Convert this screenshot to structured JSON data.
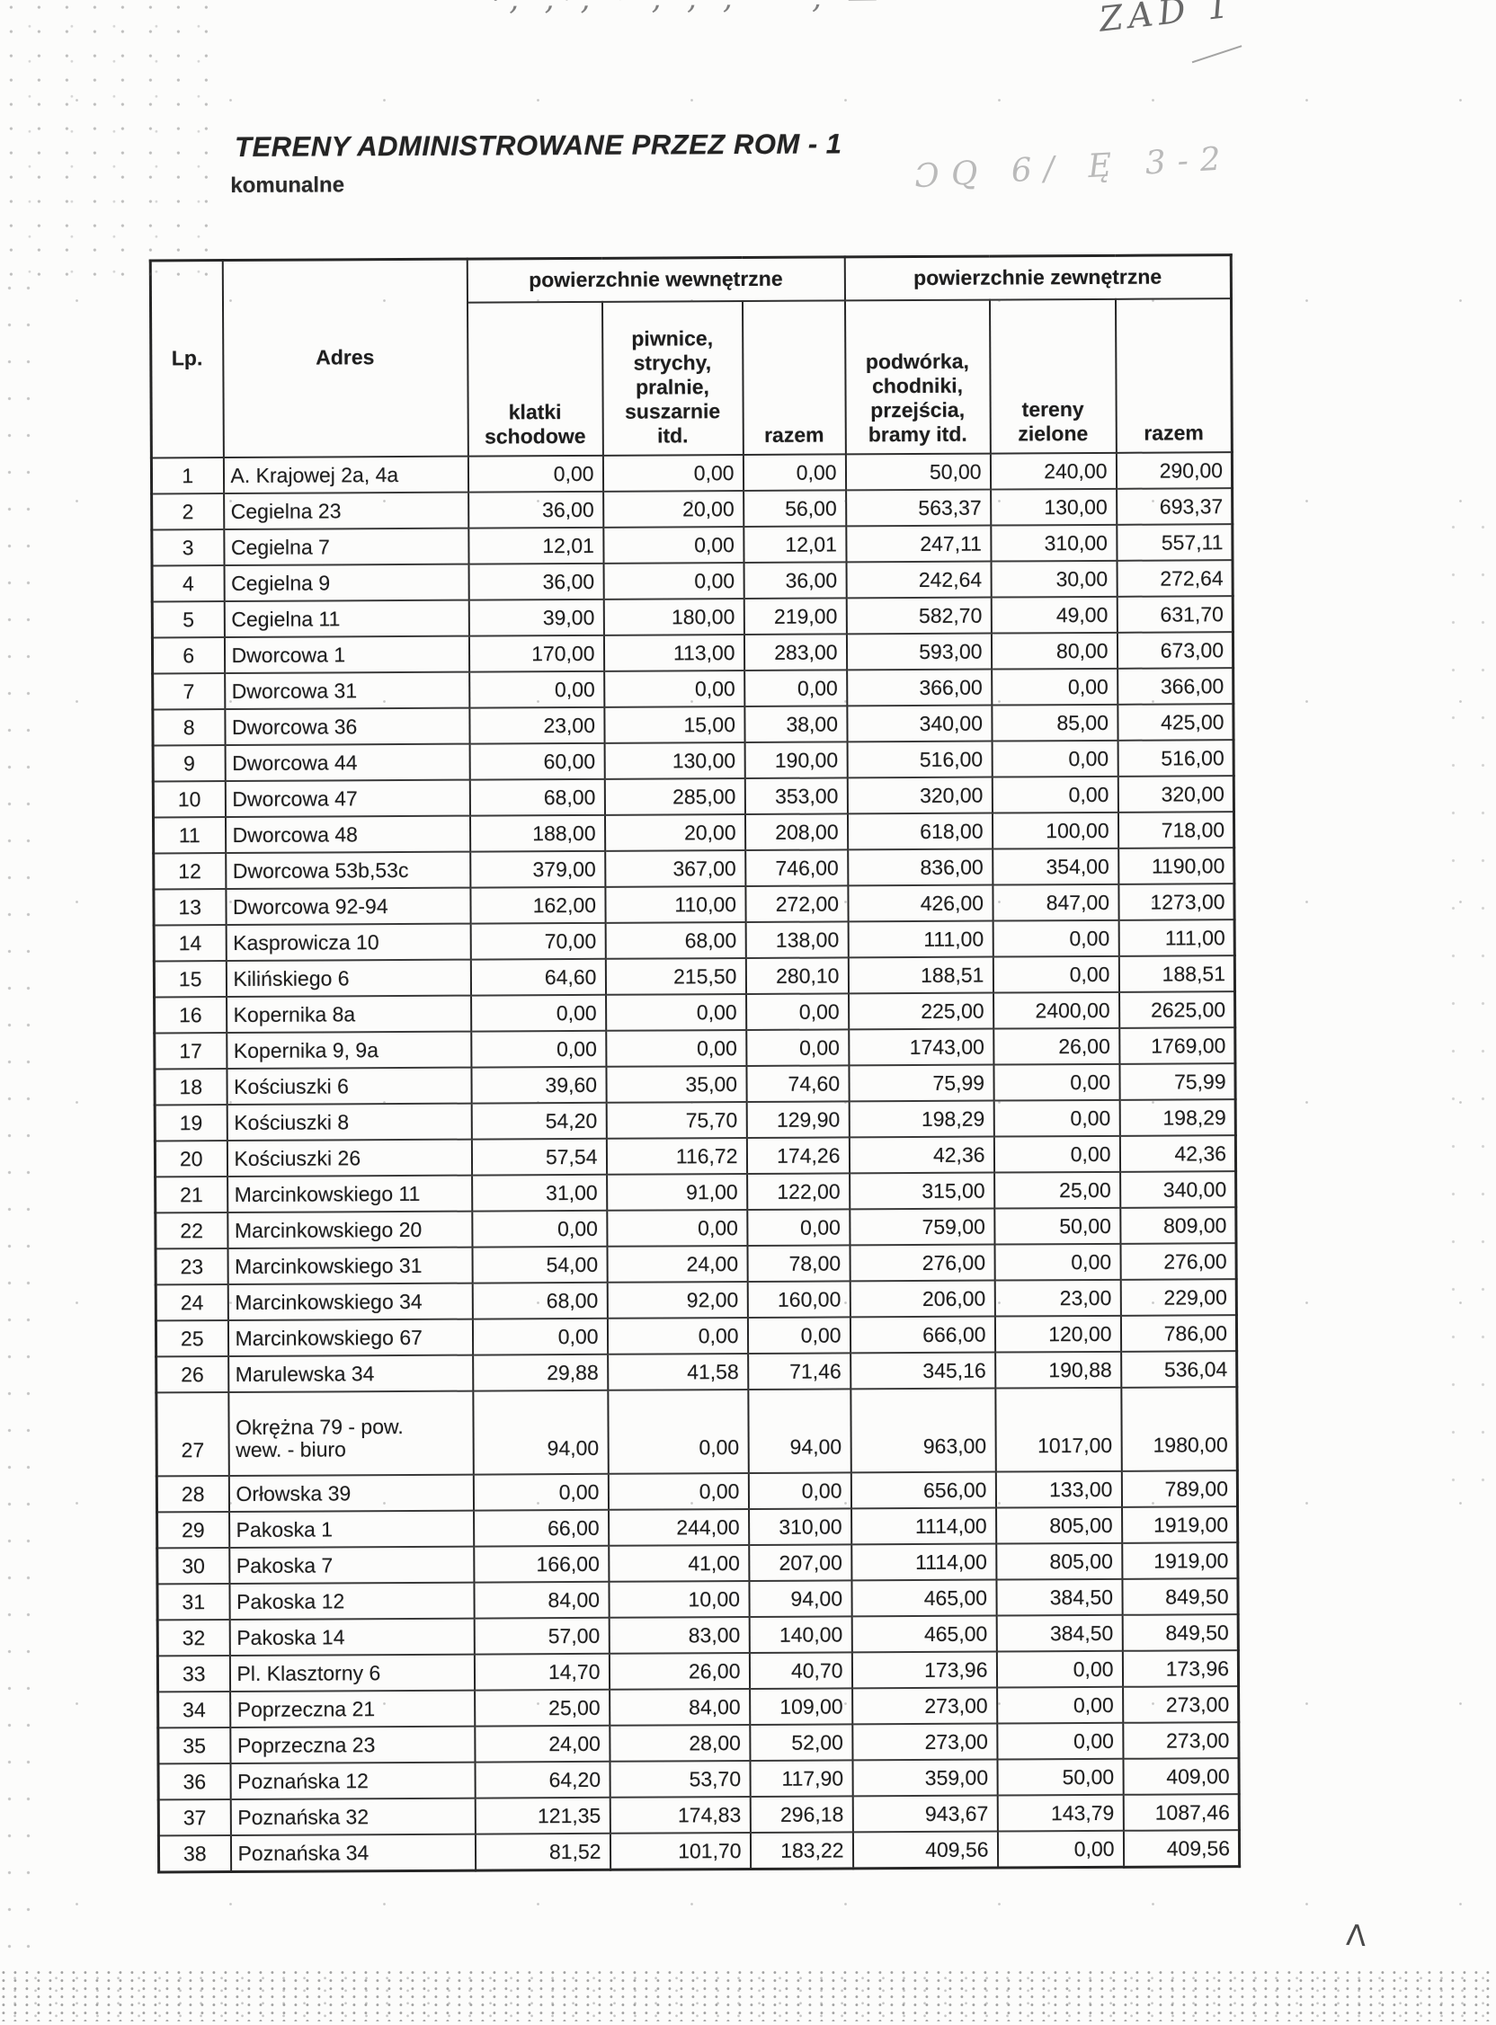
{
  "page": {
    "title": "TERENY ADMINISTROWANE PRZEZ ROM - 1",
    "subtitle": "komunalne"
  },
  "annotations": {
    "top_scribble": "·‚ʼ,·‚ ·ʼ‚ ,·‚ ʼ··‚ —",
    "top_label": "ZAD 1",
    "side_note": "ƆQ 6/ Ę 3-2",
    "corner_mark": "Λ"
  },
  "table": {
    "header": {
      "lp": "Lp.",
      "adres": "Adres",
      "group_internal": "powierzchnie wewnętrzne",
      "group_external": "powierzchnie zewnętrzne",
      "col_klatki": "klatki\nschodowe",
      "col_piwnice": "piwnice,\nstrychy,\npralnie,\nsuszarnie\nitd.",
      "col_razem_internal": "razem",
      "col_podworka": "podwórka,\nchodniki,\nprzejścia,\nbramy itd.",
      "col_tereny": "tereny\nzielone",
      "col_razem_external": "razem"
    },
    "rows": [
      {
        "lp": "1",
        "adres": "A. Krajowej 2a, 4a",
        "values": [
          "0,00",
          "0,00",
          "0,00",
          "50,00",
          "240,00",
          "290,00"
        ]
      },
      {
        "lp": "2",
        "adres": "Cegielna 23",
        "values": [
          "36,00",
          "20,00",
          "56,00",
          "563,37",
          "130,00",
          "693,37"
        ]
      },
      {
        "lp": "3",
        "adres": "Cegielna 7",
        "values": [
          "12,01",
          "0,00",
          "12,01",
          "247,11",
          "310,00",
          "557,11"
        ]
      },
      {
        "lp": "4",
        "adres": "Cegielna 9",
        "values": [
          "36,00",
          "0,00",
          "36,00",
          "242,64",
          "30,00",
          "272,64"
        ]
      },
      {
        "lp": "5",
        "adres": "Cegielna 11",
        "values": [
          "39,00",
          "180,00",
          "219,00",
          "582,70",
          "49,00",
          "631,70"
        ]
      },
      {
        "lp": "6",
        "adres": "Dworcowa 1",
        "values": [
          "170,00",
          "113,00",
          "283,00",
          "593,00",
          "80,00",
          "673,00"
        ]
      },
      {
        "lp": "7",
        "adres": "Dworcowa 31",
        "values": [
          "0,00",
          "0,00",
          "0,00",
          "366,00",
          "0,00",
          "366,00"
        ]
      },
      {
        "lp": "8",
        "adres": "Dworcowa 36",
        "values": [
          "23,00",
          "15,00",
          "38,00",
          "340,00",
          "85,00",
          "425,00"
        ]
      },
      {
        "lp": "9",
        "adres": "Dworcowa 44",
        "values": [
          "60,00",
          "130,00",
          "190,00",
          "516,00",
          "0,00",
          "516,00"
        ]
      },
      {
        "lp": "10",
        "adres": "Dworcowa 47",
        "values": [
          "68,00",
          "285,00",
          "353,00",
          "320,00",
          "0,00",
          "320,00"
        ]
      },
      {
        "lp": "11",
        "adres": "Dworcowa 48",
        "values": [
          "188,00",
          "20,00",
          "208,00",
          "618,00",
          "100,00",
          "718,00"
        ]
      },
      {
        "lp": "12",
        "adres": "Dworcowa 53b,53c",
        "values": [
          "379,00",
          "367,00",
          "746,00",
          "836,00",
          "354,00",
          "1190,00"
        ]
      },
      {
        "lp": "13",
        "adres": "Dworcowa 92-94",
        "values": [
          "162,00",
          "110,00",
          "272,00",
          "426,00",
          "847,00",
          "1273,00"
        ]
      },
      {
        "lp": "14",
        "adres": "Kasprowicza 10",
        "values": [
          "70,00",
          "68,00",
          "138,00",
          "111,00",
          "0,00",
          "111,00"
        ]
      },
      {
        "lp": "15",
        "adres": "Kilińskiego 6",
        "values": [
          "64,60",
          "215,50",
          "280,10",
          "188,51",
          "0,00",
          "188,51"
        ]
      },
      {
        "lp": "16",
        "adres": "Kopernika 8a",
        "values": [
          "0,00",
          "0,00",
          "0,00",
          "225,00",
          "2400,00",
          "2625,00"
        ]
      },
      {
        "lp": "17",
        "adres": "Kopernika 9, 9a",
        "values": [
          "0,00",
          "0,00",
          "0,00",
          "1743,00",
          "26,00",
          "1769,00"
        ]
      },
      {
        "lp": "18",
        "adres": "Kościuszki 6",
        "values": [
          "39,60",
          "35,00",
          "74,60",
          "75,99",
          "0,00",
          "75,99"
        ]
      },
      {
        "lp": "19",
        "adres": "Kościuszki 8",
        "values": [
          "54,20",
          "75,70",
          "129,90",
          "198,29",
          "0,00",
          "198,29"
        ]
      },
      {
        "lp": "20",
        "adres": "Kościuszki 26",
        "values": [
          "57,54",
          "116,72",
          "174,26",
          "42,36",
          "0,00",
          "42,36"
        ]
      },
      {
        "lp": "21",
        "adres": "Marcinkowskiego 11",
        "values": [
          "31,00",
          "91,00",
          "122,00",
          "315,00",
          "25,00",
          "340,00"
        ]
      },
      {
        "lp": "22",
        "adres": "Marcinkowskiego 20",
        "values": [
          "0,00",
          "0,00",
          "0,00",
          "759,00",
          "50,00",
          "809,00"
        ]
      },
      {
        "lp": "23",
        "adres": "Marcinkowskiego 31",
        "values": [
          "54,00",
          "24,00",
          "78,00",
          "276,00",
          "0,00",
          "276,00"
        ]
      },
      {
        "lp": "24",
        "adres": "Marcinkowskiego 34",
        "values": [
          "68,00",
          "92,00",
          "160,00",
          "206,00",
          "23,00",
          "229,00"
        ]
      },
      {
        "lp": "25",
        "adres": "Marcinkowskiego 67",
        "values": [
          "0,00",
          "0,00",
          "0,00",
          "666,00",
          "120,00",
          "786,00"
        ]
      },
      {
        "lp": "26",
        "adres": "Marulewska 34",
        "values": [
          "29,88",
          "41,58",
          "71,46",
          "345,16",
          "190,88",
          "536,04"
        ]
      },
      {
        "lp": "27",
        "adres": "Okrężna 79 - pow.\nwew. - biuro",
        "values": [
          "94,00",
          "0,00",
          "94,00",
          "963,00",
          "1017,00",
          "1980,00"
        ]
      },
      {
        "lp": "28",
        "adres": "Orłowska 39",
        "values": [
          "0,00",
          "0,00",
          "0,00",
          "656,00",
          "133,00",
          "789,00"
        ]
      },
      {
        "lp": "29",
        "adres": "Pakoska 1",
        "values": [
          "66,00",
          "244,00",
          "310,00",
          "1114,00",
          "805,00",
          "1919,00"
        ]
      },
      {
        "lp": "30",
        "adres": "Pakoska 7",
        "values": [
          "166,00",
          "41,00",
          "207,00",
          "1114,00",
          "805,00",
          "1919,00"
        ]
      },
      {
        "lp": "31",
        "adres": "Pakoska 12",
        "values": [
          "84,00",
          "10,00",
          "94,00",
          "465,00",
          "384,50",
          "849,50"
        ]
      },
      {
        "lp": "32",
        "adres": "Pakoska 14",
        "values": [
          "57,00",
          "83,00",
          "140,00",
          "465,00",
          "384,50",
          "849,50"
        ]
      },
      {
        "lp": "33",
        "adres": "Pl. Klasztorny 6",
        "values": [
          "14,70",
          "26,00",
          "40,70",
          "173,96",
          "0,00",
          "173,96"
        ]
      },
      {
        "lp": "34",
        "adres": "Poprzeczna 21",
        "values": [
          "25,00",
          "84,00",
          "109,00",
          "273,00",
          "0,00",
          "273,00"
        ]
      },
      {
        "lp": "35",
        "adres": "Poprzeczna 23",
        "values": [
          "24,00",
          "28,00",
          "52,00",
          "273,00",
          "0,00",
          "273,00"
        ]
      },
      {
        "lp": "36",
        "adres": "Poznańska 12",
        "values": [
          "64,20",
          "53,70",
          "117,90",
          "359,00",
          "50,00",
          "409,00"
        ]
      },
      {
        "lp": "37",
        "adres": "Poznańska 32",
        "values": [
          "121,35",
          "174,83",
          "296,18",
          "943,67",
          "143,79",
          "1087,46"
        ]
      },
      {
        "lp": "38",
        "adres": "Poznańska 34",
        "values": [
          "81,52",
          "101,70",
          "183,22",
          "409,56",
          "0,00",
          "409,56"
        ]
      }
    ]
  }
}
